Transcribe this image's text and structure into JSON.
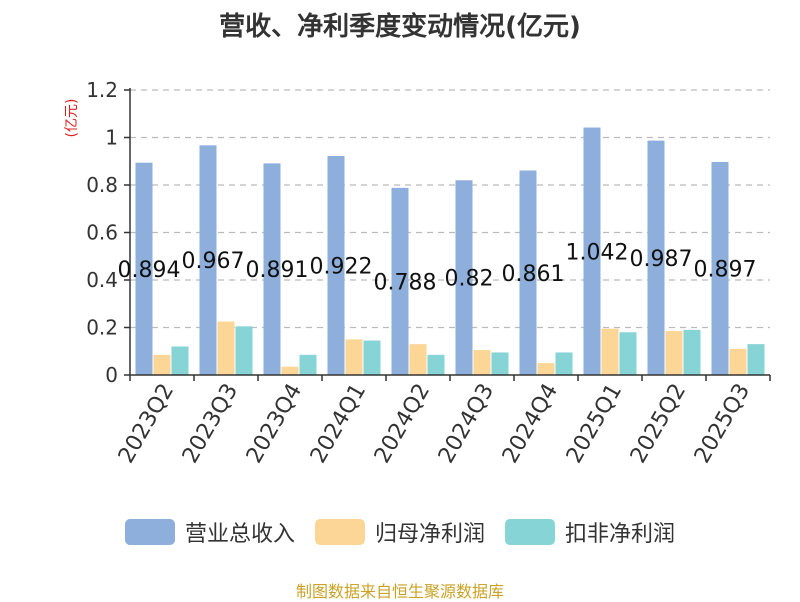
{
  "chart_data": {
    "type": "bar",
    "title": "营收、净利季度变动情况(亿元)",
    "ylabel": "(亿元)",
    "xlabel": "",
    "categories": [
      "2023Q2",
      "2023Q3",
      "2023Q4",
      "2024Q1",
      "2024Q2",
      "2024Q3",
      "2024Q4",
      "2025Q1",
      "2025Q2",
      "2025Q3"
    ],
    "ylim": [
      0,
      1.2
    ],
    "yticks": [
      0,
      0.2,
      0.4,
      0.6,
      0.8,
      1,
      1.2
    ],
    "ytick_labels": [
      "0",
      "0.2",
      "0.4",
      "0.6",
      "0.8",
      "1",
      "1.2"
    ],
    "grid": true,
    "legend_position": "bottom",
    "series": [
      {
        "name": "营业总收入",
        "color": "#8eaedb",
        "values": [
          0.894,
          0.967,
          0.891,
          0.922,
          0.788,
          0.82,
          0.861,
          1.042,
          0.987,
          0.897
        ],
        "labels": [
          "0.894",
          "0.967",
          "0.891",
          "0.922",
          "0.788",
          "0.82",
          "0.861",
          "1.042",
          "0.987",
          "0.897"
        ]
      },
      {
        "name": "归母净利润",
        "color": "#fcd696",
        "values": [
          0.085,
          0.225,
          0.035,
          0.15,
          0.13,
          0.105,
          0.05,
          0.195,
          0.185,
          0.11
        ]
      },
      {
        "name": "扣非净利润",
        "color": "#86d4d6",
        "values": [
          0.12,
          0.205,
          0.085,
          0.145,
          0.085,
          0.095,
          0.095,
          0.18,
          0.19,
          0.13
        ]
      }
    ]
  },
  "source": "制图数据来自恒生聚源数据库",
  "colors": {
    "axis": "#333333",
    "grid": "#bbbbbb",
    "ylabel": "#e02020",
    "source": "#c9a227"
  }
}
